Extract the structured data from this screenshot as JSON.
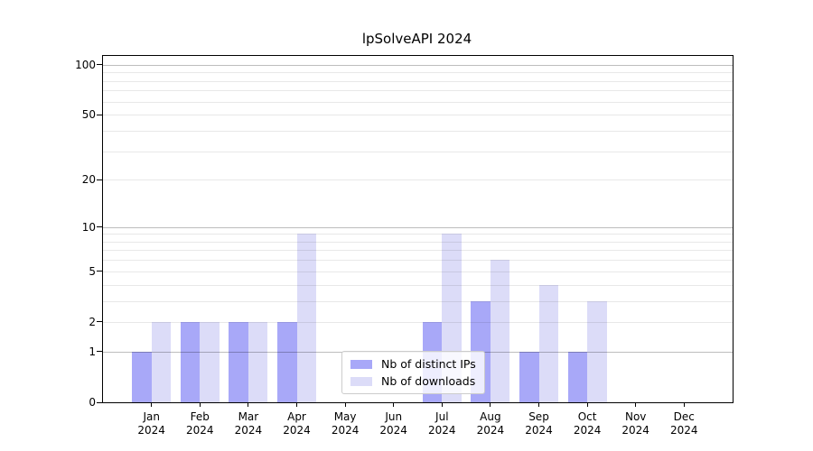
{
  "title": "lpSolveAPI 2024",
  "chart_data": {
    "type": "bar",
    "x_months": [
      "Jan",
      "Feb",
      "Mar",
      "Apr",
      "May",
      "Jun",
      "Jul",
      "Aug",
      "Sep",
      "Oct",
      "Nov",
      "Dec"
    ],
    "x_year": "2024",
    "series": [
      {
        "name": "Nb of distinct IPs",
        "color": "#a8a8f8",
        "values": [
          1,
          2,
          2,
          2,
          0,
          0,
          2,
          3,
          1,
          1,
          0,
          0
        ]
      },
      {
        "name": "Nb of downloads",
        "color": "#dcdcf8",
        "values": [
          2,
          2,
          2,
          9,
          0,
          0,
          9,
          6,
          4,
          3,
          0,
          0
        ]
      }
    ],
    "y_scale": "log1p",
    "ylim": [
      0,
      113
    ],
    "y_tick_values": [
      0,
      1,
      2,
      5,
      10,
      20,
      50,
      100
    ],
    "grid_major_values": [
      1,
      10,
      100
    ],
    "grid_minor_values": [
      2,
      3,
      4,
      5,
      6,
      7,
      8,
      9,
      20,
      30,
      40,
      50,
      60,
      70,
      80,
      90
    ],
    "grid_major_color": "rgba(0,0,0,0.26)",
    "grid_minor_color": "rgba(0,0,0,0.09)",
    "legend_position": "lower-center",
    "grid": "on"
  }
}
